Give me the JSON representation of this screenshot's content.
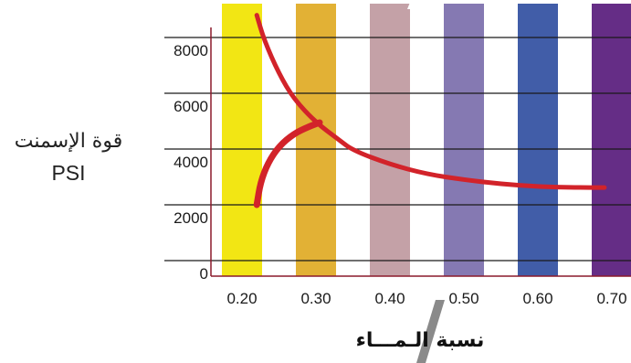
{
  "chart_data": {
    "type": "line",
    "ylabel_line1": "قوة الإسمنت",
    "ylabel_line2": "PSI",
    "xlabel": "نسبة الـمـــاء",
    "x_ticks": [
      "0.20",
      "0.30",
      "0.40",
      "0.50",
      "0.60",
      "0.70"
    ],
    "y_ticks": [
      "0",
      "2000",
      "4000",
      "6000",
      "8000"
    ],
    "ylim": [
      0,
      9000
    ],
    "xlim": [
      0.2,
      0.7
    ],
    "bar_colors": [
      "#f2e614",
      "#e2b135",
      "#c4a1a7",
      "#8579b2",
      "#415da8",
      "#652d86"
    ],
    "curve_color": "#d2232a",
    "series": [
      {
        "values": [
          [
            0.22,
            8800
          ],
          [
            0.23,
            7900
          ],
          [
            0.25,
            6700
          ],
          [
            0.27,
            5800
          ],
          [
            0.3,
            4950
          ],
          [
            0.33,
            4350
          ],
          [
            0.35,
            3950
          ],
          [
            0.4,
            3450
          ],
          [
            0.45,
            3100
          ],
          [
            0.5,
            2900
          ],
          [
            0.55,
            2750
          ],
          [
            0.6,
            2650
          ],
          [
            0.65,
            2620
          ],
          [
            0.69,
            2620
          ]
        ]
      },
      {
        "values": [
          [
            0.22,
            2000
          ],
          [
            0.225,
            2800
          ],
          [
            0.235,
            3500
          ],
          [
            0.25,
            4100
          ],
          [
            0.27,
            4550
          ],
          [
            0.29,
            4800
          ],
          [
            0.305,
            4950
          ]
        ]
      }
    ]
  }
}
